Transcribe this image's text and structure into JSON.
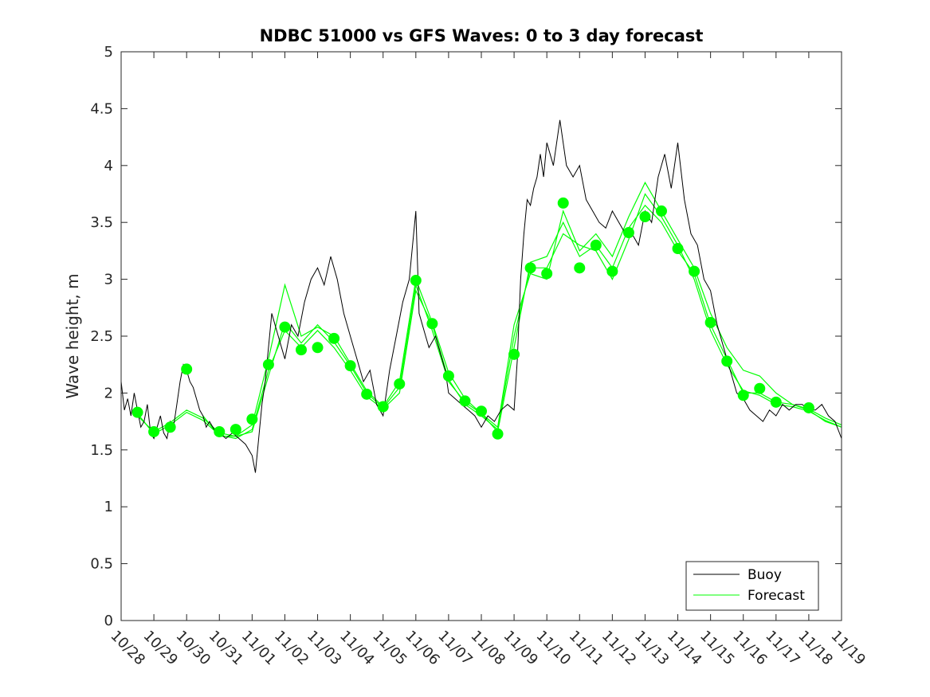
{
  "chart_data": {
    "type": "line",
    "title": "NDBC 51000 vs GFS Waves: 0 to 3 day forecast",
    "xlabel": "",
    "ylabel": "Wave height, m",
    "xlim": [
      "10/28",
      "11/19"
    ],
    "ylim": [
      0,
      5
    ],
    "x_ticks": [
      "10/28",
      "10/29",
      "10/30",
      "10/31",
      "11/01",
      "11/02",
      "11/03",
      "11/04",
      "11/05",
      "11/06",
      "11/07",
      "11/08",
      "11/09",
      "11/10",
      "11/11",
      "11/12",
      "11/13",
      "11/14",
      "11/15",
      "11/16",
      "11/17",
      "11/18",
      "11/19"
    ],
    "y_ticks": [
      "0",
      "0.5",
      "1",
      "1.5",
      "2",
      "2.5",
      "3",
      "3.5",
      "4",
      "4.5",
      "5"
    ],
    "grid": false,
    "legend_position": "bottom-right",
    "colors": {
      "buoy": "#000000",
      "forecast": "#00ff00"
    },
    "series": [
      {
        "name": "Buoy",
        "style": "thin black line, noisy hourly observations",
        "x_days": [
          0,
          0.1,
          0.2,
          0.3,
          0.4,
          0.5,
          0.6,
          0.7,
          0.8,
          0.9,
          1.0,
          1.1,
          1.2,
          1.3,
          1.4,
          1.5,
          1.6,
          1.7,
          1.8,
          1.9,
          2.0,
          2.1,
          2.2,
          2.3,
          2.4,
          2.5,
          2.6,
          2.7,
          2.8,
          2.9,
          3.0,
          3.2,
          3.4,
          3.6,
          3.8,
          4.0,
          4.1,
          4.2,
          4.3,
          4.4,
          4.5,
          4.6,
          4.7,
          4.8,
          4.9,
          5.0,
          5.2,
          5.4,
          5.6,
          5.8,
          6.0,
          6.2,
          6.4,
          6.6,
          6.8,
          7.0,
          7.2,
          7.4,
          7.6,
          7.8,
          8.0,
          8.2,
          8.4,
          8.6,
          8.8,
          9.0,
          9.1,
          9.2,
          9.3,
          9.4,
          9.5,
          9.6,
          9.7,
          9.8,
          9.9,
          10.0,
          10.2,
          10.4,
          10.6,
          10.8,
          11.0,
          11.2,
          11.4,
          11.6,
          11.8,
          12.0,
          12.1,
          12.2,
          12.3,
          12.4,
          12.5,
          12.6,
          12.7,
          12.8,
          12.9,
          13.0,
          13.2,
          13.4,
          13.6,
          13.8,
          14.0,
          14.2,
          14.4,
          14.6,
          14.8,
          15.0,
          15.2,
          15.4,
          15.6,
          15.8,
          16.0,
          16.2,
          16.4,
          16.6,
          16.8,
          17.0,
          17.2,
          17.4,
          17.6,
          17.8,
          18.0,
          18.2,
          18.4,
          18.6,
          18.8,
          19.0,
          19.2,
          19.4,
          19.6,
          19.8,
          20.0,
          20.2,
          20.4,
          20.6,
          20.8,
          21.0,
          21.2,
          21.4,
          21.6,
          21.8,
          22.0
        ],
        "values": [
          2.1,
          1.85,
          1.95,
          1.8,
          2.0,
          1.85,
          1.7,
          1.75,
          1.9,
          1.65,
          1.6,
          1.7,
          1.8,
          1.65,
          1.6,
          1.75,
          1.7,
          1.9,
          2.1,
          2.25,
          2.2,
          2.1,
          2.05,
          1.95,
          1.85,
          1.8,
          1.7,
          1.75,
          1.7,
          1.65,
          1.65,
          1.6,
          1.65,
          1.6,
          1.55,
          1.45,
          1.3,
          1.6,
          1.9,
          2.1,
          2.4,
          2.7,
          2.6,
          2.5,
          2.4,
          2.3,
          2.6,
          2.5,
          2.8,
          3.0,
          3.1,
          2.95,
          3.2,
          3.0,
          2.7,
          2.5,
          2.3,
          2.1,
          2.2,
          1.9,
          1.8,
          2.2,
          2.5,
          2.8,
          3.0,
          3.6,
          2.7,
          2.6,
          2.5,
          2.4,
          2.45,
          2.5,
          2.4,
          2.3,
          2.2,
          2.0,
          1.95,
          1.9,
          1.85,
          1.8,
          1.7,
          1.8,
          1.75,
          1.85,
          1.9,
          1.85,
          2.3,
          3.0,
          3.4,
          3.7,
          3.65,
          3.8,
          3.9,
          4.1,
          3.9,
          4.2,
          4.0,
          4.4,
          4.0,
          3.9,
          4.0,
          3.7,
          3.6,
          3.5,
          3.45,
          3.6,
          3.5,
          3.4,
          3.4,
          3.3,
          3.6,
          3.5,
          3.9,
          4.1,
          3.8,
          4.2,
          3.7,
          3.4,
          3.3,
          3.0,
          2.9,
          2.6,
          2.4,
          2.2,
          2.0,
          1.95,
          1.85,
          1.8,
          1.75,
          1.85,
          1.8,
          1.9,
          1.85,
          1.9,
          1.9,
          1.85,
          1.85,
          1.9,
          1.8,
          1.75,
          1.6
        ]
      },
      {
        "name": "Forecast",
        "style": "thin green lines (multiple forecast runs) with green circle markers at analysis times",
        "marker_x_days": [
          0.5,
          1.0,
          1.5,
          2.0,
          3.0,
          3.5,
          4.0,
          4.5,
          5.0,
          5.5,
          6.0,
          6.5,
          7.0,
          7.5,
          8.0,
          8.5,
          9.0,
          9.5,
          10.0,
          10.5,
          11.0,
          11.5,
          12.0,
          12.5,
          13.0,
          13.5,
          14.0,
          14.5,
          15.0,
          15.5,
          16.0,
          16.5,
          17.0,
          17.5,
          18.0,
          18.5,
          19.0,
          19.5,
          20.0,
          21.0
        ],
        "marker_values": [
          1.83,
          1.66,
          1.7,
          2.21,
          1.66,
          1.68,
          1.77,
          2.25,
          2.58,
          2.38,
          2.4,
          2.48,
          2.24,
          1.99,
          1.88,
          2.08,
          2.99,
          2.61,
          2.15,
          1.93,
          1.84,
          1.64,
          2.34,
          3.1,
          3.05,
          3.67,
          3.1,
          3.3,
          3.07,
          3.41,
          3.55,
          3.6,
          3.27,
          3.07,
          2.62,
          2.28,
          1.98,
          2.04,
          1.92,
          1.87
        ],
        "runs": [
          {
            "x_days": [
              0.5,
              1.0,
              1.5,
              2.0,
              2.5,
              3.0,
              3.5,
              4.0,
              4.5,
              5.0,
              5.5,
              6.0,
              6.5,
              7.0,
              7.5,
              8.0,
              8.5,
              9.0,
              9.5,
              10.0,
              10.5,
              11.0,
              11.5,
              12.0,
              12.5,
              13.0,
              13.5,
              14.0,
              14.5,
              15.0,
              15.5,
              16.0,
              16.5,
              17.0,
              17.5,
              18.0,
              18.5,
              19.0,
              19.5,
              20.0,
              20.5,
              21.0,
              21.5,
              22.0
            ],
            "values": [
              1.8,
              1.66,
              1.74,
              1.85,
              1.78,
              1.65,
              1.62,
              1.66,
              2.15,
              2.62,
              2.44,
              2.6,
              2.45,
              2.24,
              2.0,
              1.87,
              2.05,
              2.95,
              2.55,
              2.1,
              1.92,
              1.82,
              1.66,
              2.4,
              3.15,
              3.2,
              3.5,
              3.2,
              3.3,
              3.1,
              3.45,
              3.65,
              3.5,
              3.25,
              3.05,
              2.6,
              2.3,
              2.0,
              2.0,
              1.92,
              1.9,
              1.86,
              1.78,
              1.72
            ]
          },
          {
            "x_days": [
              0.5,
              1.0,
              1.5,
              2.0,
              2.5,
              3.0,
              3.5,
              4.0,
              4.5,
              5.0,
              5.5,
              6.0,
              6.5,
              7.0,
              7.5,
              8.0,
              8.5,
              9.0,
              9.5,
              10.0,
              10.5,
              11.0,
              11.5,
              12.0,
              12.5,
              13.0,
              13.5,
              14.0,
              14.5,
              15.0,
              15.5,
              16.0,
              16.5,
              17.0,
              17.5,
              18.0,
              18.5,
              19.0,
              19.5,
              20.0,
              20.5,
              21.0,
              21.5,
              22.0
            ],
            "values": [
              1.82,
              1.64,
              1.72,
              1.83,
              1.76,
              1.63,
              1.6,
              1.68,
              2.2,
              2.55,
              2.4,
              2.55,
              2.4,
              2.2,
              1.97,
              1.86,
              2.0,
              2.9,
              2.6,
              2.12,
              1.9,
              1.8,
              1.68,
              2.5,
              3.1,
              3.1,
              3.4,
              3.3,
              3.25,
              3.0,
              3.35,
              3.75,
              3.55,
              3.3,
              3.0,
              2.55,
              2.25,
              2.02,
              1.98,
              1.9,
              1.88,
              1.84,
              1.76,
              1.7
            ]
          },
          {
            "x_days": [
              2.5,
              3.0,
              3.5,
              4.0,
              4.5,
              5.0,
              5.5,
              6.0,
              6.5,
              7.0,
              7.5,
              8.0,
              8.5,
              9.0,
              9.5,
              10.0,
              10.5,
              11.0,
              11.5,
              12.0,
              12.5,
              13.0,
              13.5,
              14.0,
              14.5,
              15.0,
              15.5,
              16.0,
              16.5,
              17.0,
              17.5,
              18.0,
              18.5,
              19.0,
              19.5,
              20.0,
              20.5,
              21.0,
              21.5,
              22.0
            ],
            "values": [
              1.8,
              1.62,
              1.62,
              1.72,
              2.3,
              2.95,
              2.5,
              2.58,
              2.5,
              2.26,
              2.02,
              1.88,
              2.1,
              3.0,
              2.62,
              2.18,
              1.95,
              1.82,
              1.7,
              2.6,
              3.05,
              3.0,
              3.6,
              3.25,
              3.4,
              3.2,
              3.55,
              3.85,
              3.6,
              3.35,
              3.1,
              2.7,
              2.4,
              2.2,
              2.15,
              2.0,
              1.9,
              1.85,
              1.75,
              1.7
            ]
          }
        ]
      }
    ]
  },
  "legend": {
    "buoy_label": "Buoy",
    "forecast_label": "Forecast"
  }
}
